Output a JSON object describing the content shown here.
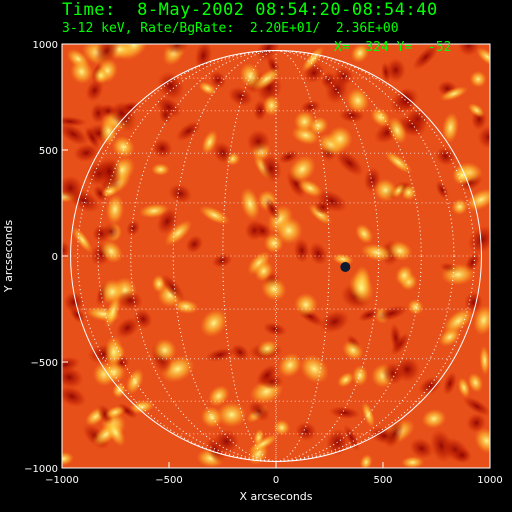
{
  "header": {
    "time_line": "Time:  8-May-2002 08:54:20-08:54:40",
    "rate_line": "3-12 keV, Rate/BgRate:  2.20E+01/  2.36E+00",
    "xy_readout": "X=  324 Y=  -52"
  },
  "axes": {
    "xlabel": "X arcseconds",
    "ylabel": "Y arcseconds",
    "x_ticks": [
      -1000,
      -500,
      0,
      500,
      1000
    ],
    "y_ticks": [
      -1000,
      -500,
      0,
      500,
      1000
    ],
    "x_range": [
      -1000,
      1000
    ],
    "y_range": [
      -1000,
      1000
    ]
  },
  "image": {
    "colormap": "red-temperature",
    "colors": {
      "dark": "#8a0000",
      "mid": "#e64a10",
      "bright": "#ffb830",
      "peak": "#ffff80",
      "frame": "#ffffff",
      "text": "#00ff00"
    },
    "solar_limb_radius_arcsec": 960,
    "grid": true,
    "source_position_arcsec": [
      324,
      -52
    ]
  }
}
